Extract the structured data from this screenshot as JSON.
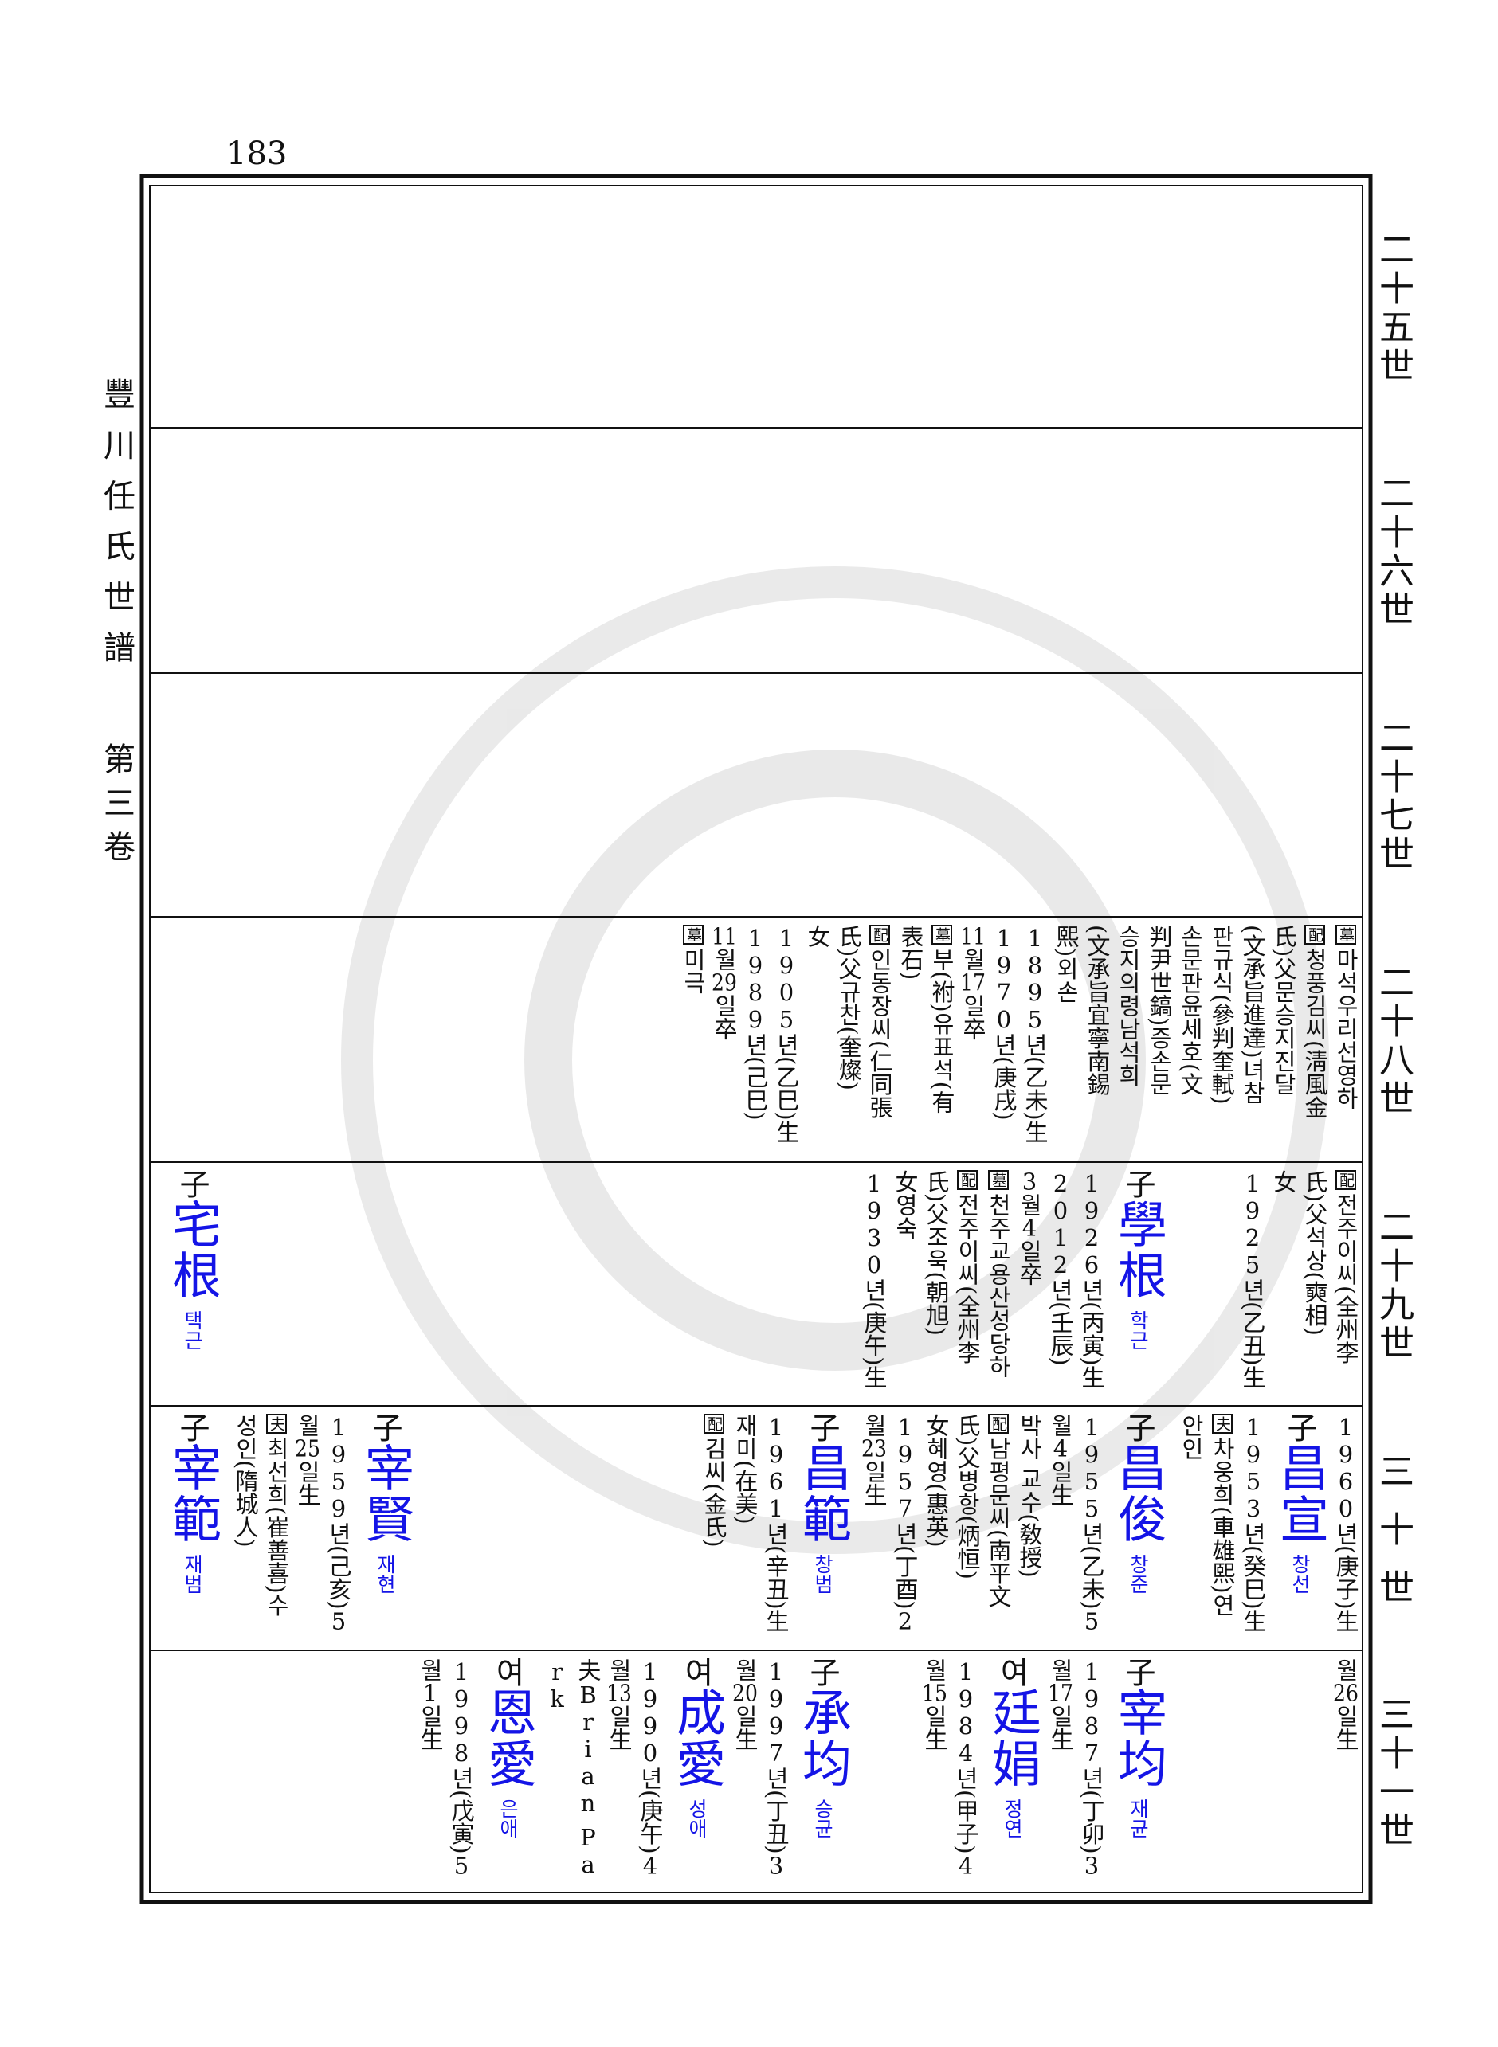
{
  "page_number": "183",
  "book_title": "豐川任氏世譜",
  "volume": "第三卷",
  "generations": [
    {
      "label": "二十五世",
      "entries": []
    },
    {
      "label": "二十六世",
      "entries": []
    },
    {
      "label": "二十七世",
      "entries": []
    },
    {
      "label": "二十八世",
      "entries": [
        {
          "lines": [
            {
              "tag": "墓",
              "text": "마석우리선영하"
            },
            {
              "tag": "配",
              "text": "청풍김씨(淸風金"
            },
            "氏)父문승지진달",
            "(文承旨進達)녀참",
            "판규식(參判奎軾)",
            "손문판윤세호(文",
            "判尹世鎬)증손문",
            "승지의령남석희",
            "(文承旨宜寧南錫",
            "熙)외손",
            "1895년(乙未)生",
            "1970년(庚戌)",
            "11월17일卒",
            {
              "tag": "墓",
              "text": "부(祔)유표석(有"
            },
            "表石)",
            {
              "tag": "配",
              "text": "인동장씨(仁同張"
            },
            "氏)父규찬(奎燦)",
            "女",
            "1905년(乙巳)生",
            "1989년(己巳)",
            "11월29일卒",
            {
              "tag": "墓",
              "text": "미극"
            }
          ]
        }
      ]
    },
    {
      "label": "二十九世",
      "entries": [
        {
          "lines": [
            {
              "tag": "配",
              "text": "전주이씨(全州李"
            },
            "氏)父석상(奭相)",
            "女",
            "1925년(乙丑)生"
          ]
        },
        {
          "relation": "子",
          "name": "學根",
          "reading": "학근",
          "lines": [
            "1926년(丙寅)生",
            "2012년(壬辰)",
            "3월4일卒",
            {
              "tag": "墓",
              "text": "천주교용산성당하"
            },
            {
              "tag": "配",
              "text": "전주이씨(全州李"
            },
            "氏)父조욱(朝旭)",
            "女영숙",
            "1930년(庚午)生"
          ]
        },
        {
          "relation": "子",
          "name": "宅根",
          "reading": "택근",
          "lines": []
        }
      ]
    },
    {
      "label": "三十世",
      "entries": [
        {
          "lines": [
            "1960년(庚子)生"
          ]
        },
        {
          "relation": "子",
          "name": "昌宣",
          "reading": "창선",
          "lines": [
            "1953년(癸巳)生",
            {
              "tag": "夫",
              "text": "차웅희(車雄熙)연"
            },
            "안인"
          ]
        },
        {
          "relation": "子",
          "name": "昌俊",
          "reading": "창준",
          "lines": [
            "1955년(乙未)5",
            "월4일生",
            "박사 교수(敎授)",
            {
              "tag": "配",
              "text": "남평문씨(南平文"
            },
            "氏)父병항(炳恒)",
            "女혜영(惠英)",
            "1957년(丁酉)2",
            "월23일生"
          ]
        },
        {
          "relation": "子",
          "name": "昌範",
          "reading": "창범",
          "lines": [
            "1961년(辛丑)生",
            "재미(在美)",
            {
              "tag": "配",
              "text": "김씨(金氏)"
            }
          ]
        },
        {
          "relation": "子",
          "name": "宰賢",
          "reading": "재현",
          "lines": [
            "1959년(己亥)5",
            "월25일生",
            {
              "tag": "夫",
              "text": "최선희(崔善喜)수"
            },
            "성인(隋城人)"
          ]
        },
        {
          "relation": "子",
          "name": "宰範",
          "reading": "재범",
          "lines": []
        }
      ]
    },
    {
      "label": "三十一世",
      "entries": [
        {
          "lines": [
            "월26일生"
          ]
        },
        {
          "relation": "子",
          "name": "宰均",
          "reading": "재균",
          "lines": [
            "1987년(丁卯)3",
            "월17일生"
          ]
        },
        {
          "relation": "여",
          "name": "廷娟",
          "reading": "정연",
          "lines": [
            "1984년(甲子)4",
            "월15일生"
          ]
        },
        {
          "relation": "子",
          "name": "承均",
          "reading": "승균",
          "lines": [
            "1997년(丁丑)3",
            "월20일生"
          ]
        },
        {
          "relation": "여",
          "name": "成愛",
          "reading": "성애",
          "lines": [
            "1990년(庚午)4",
            "월13일生",
            "夫Brian Pa",
            "rk"
          ]
        },
        {
          "relation": "여",
          "name": "恩愛",
          "reading": "은애",
          "lines": [
            "1998년(戊寅)5",
            "월1일生"
          ]
        }
      ]
    }
  ]
}
